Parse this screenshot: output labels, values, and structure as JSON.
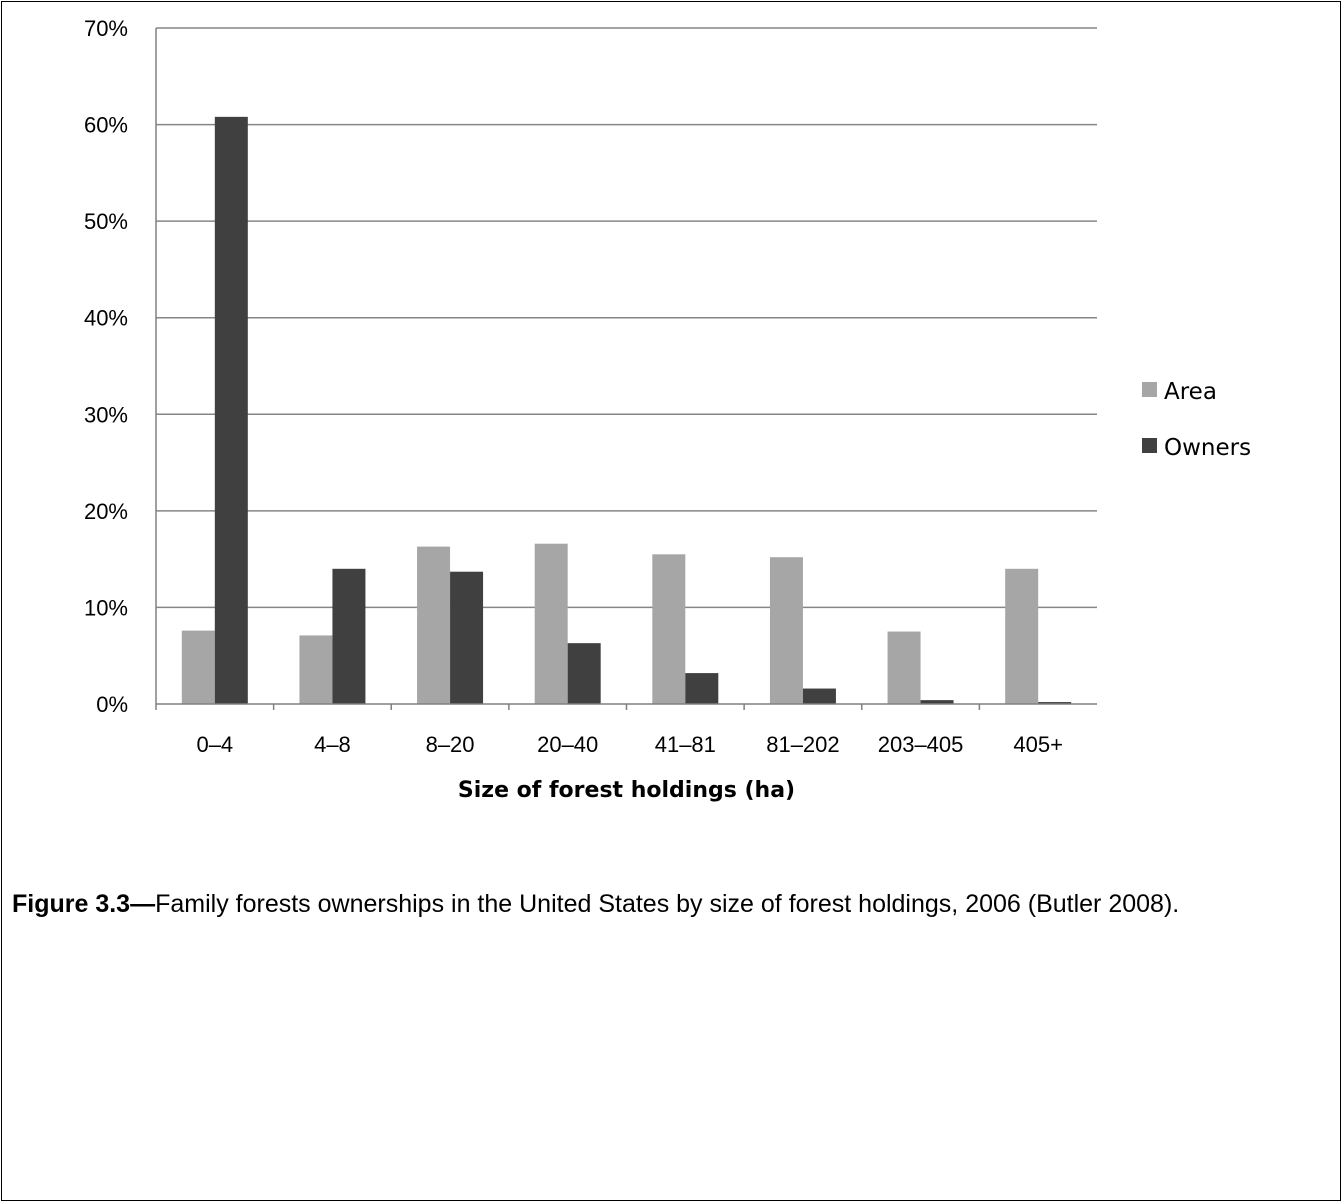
{
  "chart_data": {
    "type": "bar",
    "categories": [
      "0–4",
      "4–8",
      "8–20",
      "20–40",
      "41–81",
      "81–202",
      "203–405",
      "405+"
    ],
    "series": [
      {
        "name": "Area",
        "color": "#a6a6a6",
        "values": [
          7.6,
          7.1,
          16.3,
          16.6,
          15.5,
          15.2,
          7.5,
          14.0
        ]
      },
      {
        "name": "Owners",
        "color": "#404040",
        "values": [
          60.8,
          14.0,
          13.7,
          6.3,
          3.2,
          1.6,
          0.4,
          0.2
        ]
      }
    ],
    "xlabel": "Size of forest holdings (ha)",
    "ylabel": "",
    "ylim": [
      0,
      70
    ],
    "yticks": [
      0,
      10,
      20,
      30,
      40,
      50,
      60,
      70
    ],
    "ytick_labels": [
      "0%",
      "10%",
      "20%",
      "30%",
      "40%",
      "50%",
      "60%",
      "70%"
    ],
    "grid": true,
    "legend_position": "right"
  },
  "caption": {
    "label": "Figure 3.3—",
    "text": "Family forests ownerships in the United States by size of forest holdings, 2006 (Butler 2008)."
  }
}
